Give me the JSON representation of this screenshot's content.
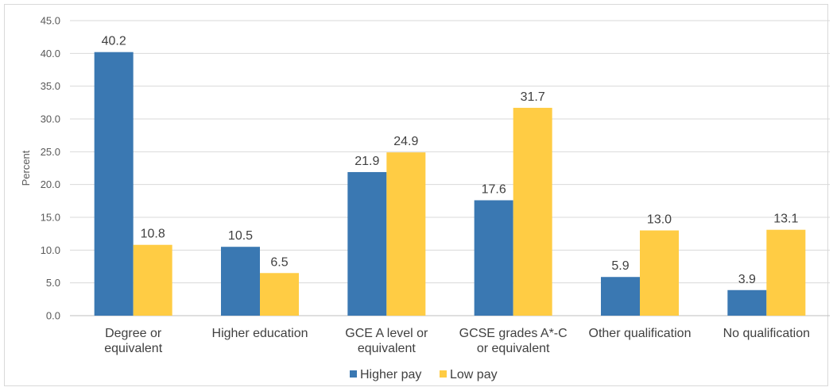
{
  "chart_data": {
    "type": "bar",
    "title": "",
    "xlabel": "",
    "ylabel": "Percent",
    "ylim": [
      0,
      45
    ],
    "yticks": [
      "0.0",
      "5.0",
      "10.0",
      "15.0",
      "20.0",
      "25.0",
      "30.0",
      "35.0",
      "40.0",
      "45.0"
    ],
    "grid": true,
    "legend_position": "bottom",
    "categories": [
      [
        "Degree or",
        "equivalent"
      ],
      [
        "Higher education"
      ],
      [
        "GCE A level or",
        "equivalent"
      ],
      [
        "GCSE grades A*-C",
        "or equivalent"
      ],
      [
        "Other qualification"
      ],
      [
        "No qualification"
      ]
    ],
    "series": [
      {
        "name": "Higher pay",
        "color": "#3a78b2",
        "values": [
          40.2,
          10.5,
          21.9,
          17.6,
          5.9,
          3.9
        ],
        "labels": [
          "40.2",
          "10.5",
          "21.9",
          "17.6",
          "5.9",
          "3.9"
        ]
      },
      {
        "name": "Low pay",
        "color": "#ffcc44",
        "values": [
          10.8,
          6.5,
          24.9,
          31.7,
          13.0,
          13.1
        ],
        "labels": [
          "10.8",
          "6.5",
          "24.9",
          "31.7",
          "13.0",
          "13.1"
        ]
      }
    ]
  }
}
